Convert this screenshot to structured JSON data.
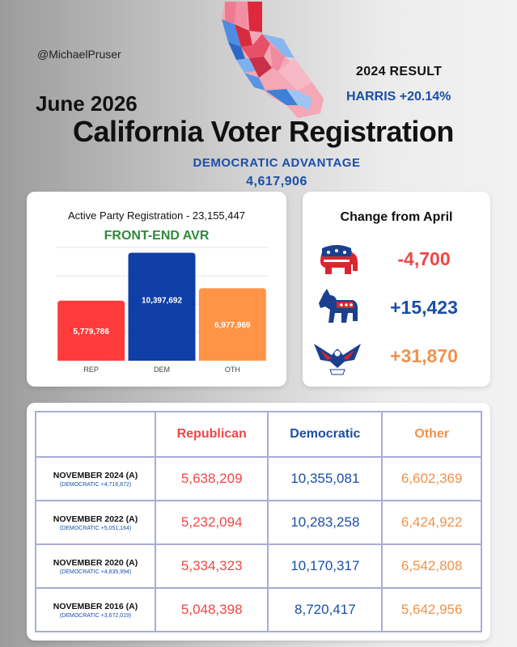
{
  "colors": {
    "republican": "#ff3b3b",
    "democratic": "#0f3fa6",
    "other": "#ff9447",
    "accent_green": "#2f8a3a",
    "grid_border": "#a9acd6"
  },
  "handle": "@MichaelPruser",
  "result": {
    "title": "2024 RESULT",
    "value": "HARRIS +20.14%"
  },
  "header": {
    "date": "June 2026",
    "title": "California Voter Registration",
    "advantage_label": "DEMOCRATIC ADVANTAGE",
    "advantage_value": "4,617,906"
  },
  "chart_data": {
    "type": "bar",
    "title": "Active Party Registration - 23,155,447",
    "subtitle": "FRONT-END AVR",
    "categories": [
      "REP",
      "DEM",
      "OTH"
    ],
    "values": [
      5779786,
      10397692,
      6977969
    ],
    "value_labels": [
      "5,779,786",
      "10,397,692",
      "6,977,969"
    ],
    "colors": [
      "#ff3b3b",
      "#0f3fa6",
      "#ff9447"
    ],
    "ylim": [
      0,
      10900000
    ],
    "grid": true
  },
  "change": {
    "title": "Change from April",
    "items": [
      {
        "icon": "elephant-icon",
        "value": "-4,700",
        "color": "#f04646"
      },
      {
        "icon": "donkey-icon",
        "value": "+15,423",
        "color": "#1a4fa8"
      },
      {
        "icon": "eagle-icon",
        "value": "+31,870",
        "color": "#f0924a"
      }
    ]
  },
  "table": {
    "headers": [
      "Republican",
      "Democratic",
      "Other"
    ],
    "rows": [
      {
        "label": "NOVEMBER 2024 (A)",
        "sub": "(DEMOCRATIC +4,716,872)",
        "rep": "5,638,209",
        "dem": "10,355,081",
        "oth": "6,602,369"
      },
      {
        "label": "NOVEMBER 2022 (A)",
        "sub": "(DEMOCRATIC +5,051,164)",
        "rep": "5,232,094",
        "dem": "10,283,258",
        "oth": "6,424,922"
      },
      {
        "label": "NOVEMBER 2020 (A)",
        "sub": "(DEMOCRATIC +4,835,994)",
        "rep": "5,334,323",
        "dem": "10,170,317",
        "oth": "6,542,808"
      },
      {
        "label": "NOVEMBER 2016 (A)",
        "sub": "(DEMOCRATIC +3,672,019)",
        "rep": "5,048,398",
        "dem": "8,720,417",
        "oth": "5,642,956"
      }
    ]
  }
}
